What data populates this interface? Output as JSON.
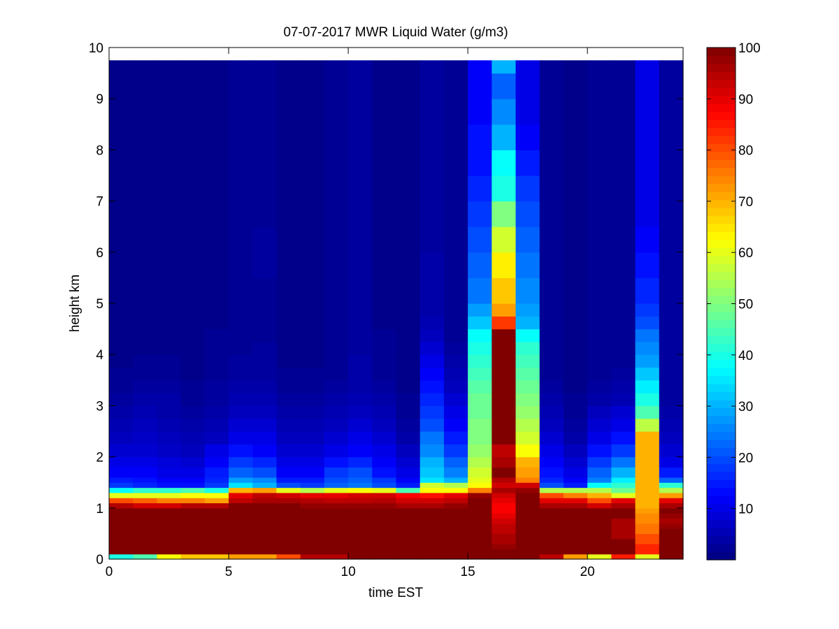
{
  "figure": {
    "title": "07-07-2017 MWR Liquid Water (g/m3)"
  },
  "chart_data": {
    "type": "heatmap",
    "title": "07-07-2017 MWR Liquid Water (g/m3)",
    "xlabel": "time EST",
    "ylabel": "height km",
    "xlim": [
      0,
      24
    ],
    "ylim": [
      0,
      10
    ],
    "x_ticks": [
      0,
      5,
      10,
      15,
      20
    ],
    "y_ticks": [
      0,
      1,
      2,
      3,
      4,
      5,
      6,
      7,
      8,
      9,
      10
    ],
    "colormap": "jet",
    "colorbar": {
      "clim": [
        0,
        100
      ],
      "ticks": [
        10,
        20,
        30,
        40,
        50,
        60,
        70,
        80,
        90,
        100
      ]
    },
    "time_centers": [
      0.5,
      1.5,
      2.5,
      3.5,
      4.5,
      5.5,
      6.5,
      7.5,
      8.5,
      9.5,
      10.5,
      11.5,
      12.5,
      13.5,
      14.5,
      15.5,
      16.5,
      17.5,
      18.5,
      19.5,
      20.5,
      21.5,
      22.5,
      23.5
    ],
    "height_levels_km": [
      0,
      0.1,
      0.2,
      0.3,
      0.4,
      0.5,
      0.6,
      0.7,
      0.8,
      0.9,
      1.0,
      1.1,
      1.2,
      1.3,
      1.4,
      1.5,
      1.6,
      1.8,
      2.0,
      2.25,
      2.5,
      2.75,
      3.0,
      3.25,
      3.5,
      3.75,
      4.0,
      4.25,
      4.5,
      4.75,
      5.0,
      5.5,
      6.0,
      6.5,
      7.0,
      7.5,
      8.0,
      8.5,
      9.0,
      9.5
    ],
    "liquid_water_profiles": [
      [
        40,
        100,
        100,
        100,
        100,
        100,
        100,
        100,
        100,
        100,
        95,
        80,
        60,
        38,
        18,
        15,
        12,
        10,
        8,
        6,
        5,
        4,
        3,
        2,
        2,
        1,
        1,
        1,
        1,
        1,
        1,
        1,
        1,
        1,
        1,
        1,
        1,
        1,
        1,
        1
      ],
      [
        45,
        100,
        100,
        100,
        100,
        100,
        100,
        100,
        100,
        100,
        92,
        78,
        60,
        42,
        16,
        14,
        12,
        10,
        8,
        7,
        6,
        5,
        4,
        3,
        2,
        2,
        1,
        1,
        1,
        1,
        1,
        1,
        1,
        1,
        1,
        1,
        1,
        1,
        1,
        1
      ],
      [
        62,
        100,
        100,
        100,
        100,
        100,
        100,
        100,
        100,
        100,
        92,
        75,
        60,
        42,
        14,
        12,
        10,
        9,
        7,
        6,
        5,
        4,
        4,
        3,
        2,
        2,
        1,
        1,
        1,
        1,
        1,
        1,
        1,
        1,
        1,
        1,
        1,
        1,
        1,
        1
      ],
      [
        68,
        100,
        100,
        100,
        100,
        100,
        100,
        100,
        100,
        100,
        95,
        75,
        62,
        45,
        14,
        12,
        10,
        8,
        6,
        5,
        4,
        3,
        2,
        2,
        1,
        1,
        1,
        1,
        1,
        1,
        1,
        1,
        1,
        1,
        1,
        1,
        1,
        1,
        1,
        1
      ],
      [
        68,
        100,
        100,
        100,
        100,
        100,
        100,
        100,
        100,
        100,
        95,
        72,
        62,
        40,
        18,
        16,
        15,
        12,
        10,
        6,
        5,
        4,
        3,
        3,
        2,
        2,
        2,
        2,
        1,
        1,
        1,
        1,
        1,
        1,
        1,
        1,
        1,
        1,
        1,
        1
      ],
      [
        72,
        100,
        100,
        100,
        100,
        100,
        100,
        100,
        100,
        100,
        100,
        94,
        90,
        70,
        35,
        28,
        22,
        18,
        14,
        10,
        8,
        6,
        5,
        4,
        3,
        3,
        2,
        2,
        2,
        2,
        2,
        2,
        2,
        2,
        2,
        2,
        2,
        2,
        2,
        2
      ],
      [
        72,
        100,
        100,
        100,
        100,
        100,
        100,
        100,
        100,
        100,
        100,
        96,
        94,
        72,
        30,
        26,
        20,
        16,
        12,
        10,
        8,
        6,
        5,
        4,
        3,
        3,
        3,
        2,
        2,
        2,
        2,
        3,
        3,
        2,
        2,
        2,
        2,
        2,
        2,
        2
      ],
      [
        80,
        100,
        100,
        100,
        100,
        100,
        100,
        100,
        100,
        100,
        100,
        96,
        92,
        60,
        20,
        15,
        12,
        10,
        8,
        6,
        5,
        4,
        3,
        2,
        2,
        1,
        1,
        1,
        1,
        1,
        1,
        1,
        1,
        1,
        1,
        1,
        1,
        1,
        1,
        1
      ],
      [
        95,
        100,
        100,
        100,
        100,
        100,
        100,
        100,
        100,
        100,
        98,
        95,
        90,
        55,
        18,
        15,
        12,
        10,
        8,
        6,
        5,
        4,
        3,
        2,
        2,
        1,
        1,
        1,
        1,
        1,
        1,
        1,
        1,
        1,
        1,
        1,
        1,
        1,
        1,
        1
      ],
      [
        95,
        100,
        100,
        100,
        100,
        100,
        100,
        100,
        100,
        100,
        98,
        94,
        90,
        60,
        22,
        20,
        18,
        14,
        10,
        8,
        6,
        5,
        4,
        3,
        2,
        2,
        2,
        2,
        2,
        2,
        2,
        2,
        2,
        2,
        2,
        2,
        2,
        2,
        2,
        2
      ],
      [
        100,
        100,
        100,
        100,
        100,
        100,
        100,
        100,
        100,
        100,
        98,
        94,
        92,
        62,
        24,
        22,
        20,
        16,
        12,
        10,
        8,
        6,
        5,
        4,
        4,
        4,
        3,
        3,
        3,
        3,
        3,
        3,
        3,
        3,
        3,
        3,
        3,
        3,
        3,
        3
      ],
      [
        100,
        100,
        100,
        100,
        100,
        100,
        100,
        100,
        100,
        100,
        98,
        95,
        92,
        60,
        20,
        18,
        14,
        12,
        10,
        8,
        6,
        5,
        4,
        3,
        2,
        2,
        2,
        2,
        1,
        1,
        1,
        1,
        1,
        1,
        1,
        1,
        1,
        1,
        1,
        1
      ],
      [
        100,
        100,
        100,
        100,
        100,
        100,
        100,
        100,
        100,
        100,
        96,
        92,
        88,
        45,
        15,
        12,
        10,
        8,
        6,
        4,
        3,
        2,
        2,
        1,
        1,
        1,
        1,
        1,
        1,
        1,
        1,
        1,
        1,
        1,
        1,
        1,
        1,
        1,
        1,
        1
      ],
      [
        100,
        100,
        100,
        100,
        100,
        100,
        100,
        100,
        100,
        100,
        96,
        92,
        86,
        62,
        58,
        35,
        32,
        30,
        26,
        24,
        20,
        18,
        16,
        14,
        12,
        10,
        8,
        6,
        5,
        4,
        4,
        4,
        3,
        3,
        3,
        3,
        3,
        3,
        3,
        3
      ],
      [
        100,
        100,
        100,
        100,
        100,
        100,
        100,
        100,
        100,
        100,
        98,
        94,
        90,
        62,
        55,
        30,
        25,
        22,
        18,
        15,
        12,
        10,
        8,
        6,
        5,
        4,
        3,
        2,
        2,
        2,
        2,
        2,
        2,
        2,
        2,
        2,
        2,
        2,
        2,
        2
      ],
      [
        100,
        100,
        100,
        100,
        100,
        100,
        100,
        100,
        100,
        100,
        100,
        100,
        98,
        75,
        62,
        60,
        58,
        55,
        52,
        50,
        50,
        48,
        48,
        46,
        44,
        42,
        40,
        38,
        32,
        28,
        24,
        22,
        20,
        18,
        16,
        14,
        14,
        12,
        12,
        12
      ],
      [
        100,
        100,
        98,
        96,
        96,
        94,
        94,
        92,
        90,
        88,
        88,
        90,
        92,
        96,
        92,
        95,
        100,
        96,
        94,
        100,
        100,
        100,
        100,
        100,
        100,
        100,
        100,
        100,
        82,
        72,
        68,
        64,
        58,
        50,
        40,
        38,
        30,
        26,
        22,
        30
      ],
      [
        100,
        100,
        100,
        100,
        100,
        100,
        100,
        100,
        100,
        100,
        100,
        100,
        100,
        98,
        92,
        75,
        72,
        70,
        62,
        58,
        55,
        52,
        50,
        48,
        46,
        44,
        42,
        38,
        30,
        28,
        26,
        24,
        22,
        20,
        18,
        15,
        12,
        10,
        10,
        10
      ],
      [
        94,
        100,
        100,
        100,
        100,
        100,
        100,
        100,
        100,
        100,
        96,
        90,
        80,
        55,
        20,
        16,
        14,
        12,
        10,
        8,
        6,
        5,
        4,
        3,
        2,
        2,
        2,
        2,
        2,
        2,
        2,
        2,
        2,
        2,
        2,
        2,
        2,
        2,
        2,
        2
      ],
      [
        72,
        100,
        100,
        100,
        100,
        100,
        100,
        100,
        100,
        100,
        96,
        90,
        75,
        55,
        15,
        12,
        10,
        8,
        6,
        4,
        3,
        2,
        2,
        1,
        1,
        1,
        1,
        1,
        1,
        1,
        1,
        1,
        1,
        1,
        1,
        1,
        1,
        1,
        1,
        1
      ],
      [
        60,
        100,
        100,
        100,
        100,
        100,
        100,
        100,
        100,
        100,
        92,
        80,
        70,
        55,
        38,
        25,
        22,
        18,
        14,
        10,
        8,
        6,
        4,
        3,
        2,
        2,
        2,
        2,
        2,
        2,
        2,
        2,
        2,
        2,
        2,
        2,
        2,
        2,
        2,
        2
      ],
      [
        85,
        100,
        100,
        100,
        96,
        96,
        96,
        96,
        100,
        100,
        96,
        90,
        60,
        48,
        42,
        36,
        30,
        24,
        18,
        14,
        10,
        8,
        5,
        4,
        3,
        2,
        2,
        2,
        2,
        2,
        2,
        2,
        2,
        2,
        2,
        2,
        2,
        2,
        2,
        2
      ],
      [
        60,
        84,
        84,
        80,
        80,
        76,
        76,
        74,
        74,
        72,
        70,
        70,
        70,
        70,
        70,
        70,
        70,
        70,
        70,
        70,
        56,
        45,
        40,
        36,
        32,
        28,
        26,
        24,
        20,
        18,
        16,
        14,
        12,
        10,
        10,
        10,
        10,
        10,
        10,
        10
      ],
      [
        100,
        100,
        100,
        100,
        100,
        100,
        98,
        96,
        98,
        100,
        96,
        90,
        72,
        55,
        42,
        22,
        15,
        10,
        8,
        6,
        5,
        4,
        3,
        3,
        3,
        3,
        3,
        3,
        3,
        3,
        3,
        3,
        3,
        3,
        3,
        3,
        3,
        3,
        3,
        3
      ]
    ]
  }
}
